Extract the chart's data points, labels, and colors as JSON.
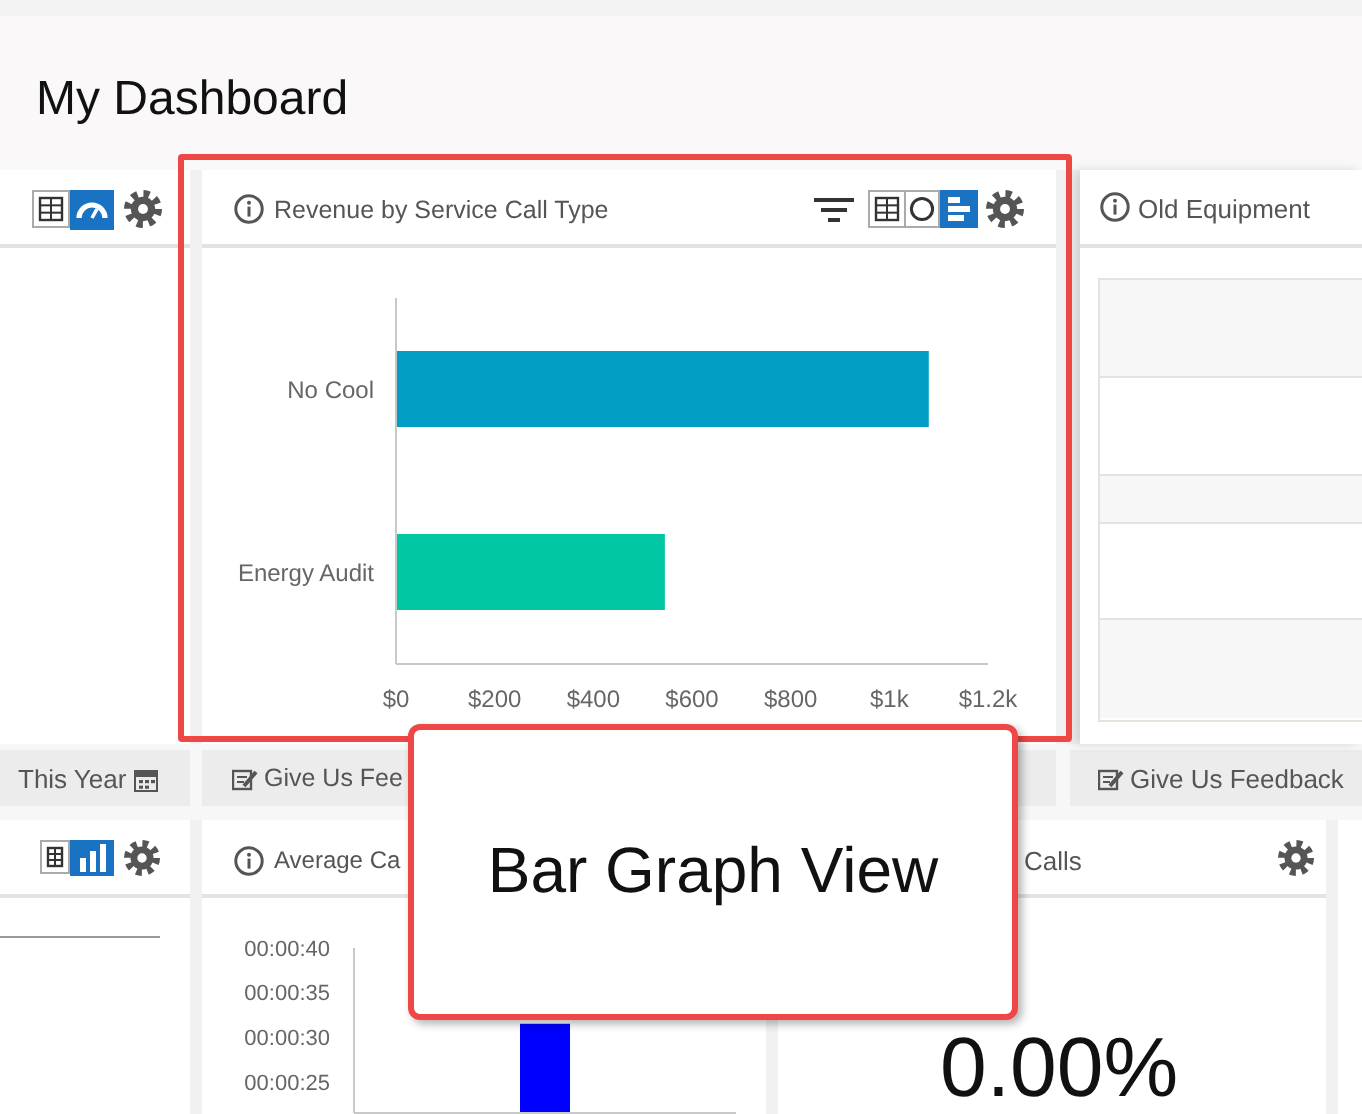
{
  "chart_data": [
    {
      "type": "other",
      "title": "My Dashboard",
      "annotations": [
        "This Year",
        "Give Us Fee",
        "Give Us Feedback"
      ]
    },
    {
      "type": "bar",
      "orientation": "horizontal",
      "title": "Revenue by Service Call Type",
      "categories": [
        "No Cool",
        "Energy Audit"
      ],
      "values": [
        1080,
        545
      ],
      "colors": [
        "#029ec6",
        "#00c6a2"
      ],
      "xlim": [
        0,
        1200
      ],
      "xticks": [
        {
          "value": 0,
          "label": "$0"
        },
        {
          "value": 200,
          "label": "$200"
        },
        {
          "value": 400,
          "label": "$400"
        },
        {
          "value": 600,
          "label": "$600"
        },
        {
          "value": 800,
          "label": "$800"
        },
        {
          "value": 1000,
          "label": "$1k"
        },
        {
          "value": 1200,
          "label": "$1.2k"
        }
      ],
      "annotations": [
        "Bar Graph View"
      ]
    },
    {
      "type": "other",
      "title": "Old Equipment"
    },
    {
      "type": "bar",
      "title": "Average Ca",
      "categories": [
        null
      ],
      "values": [
        31.5
      ],
      "color": "#0000ff",
      "ylim": [
        21.5,
        40
      ],
      "yticks": [
        {
          "value": 25,
          "label": "00:00:25"
        },
        {
          "value": 30,
          "label": "00:00:30"
        },
        {
          "value": 35,
          "label": "00:00:35"
        },
        {
          "value": 40,
          "label": "00:00:40"
        }
      ],
      "tick_labels": "y"
    },
    {
      "type": "other",
      "title": "Calls",
      "annotations": [
        "0.00%"
      ]
    }
  ]
}
